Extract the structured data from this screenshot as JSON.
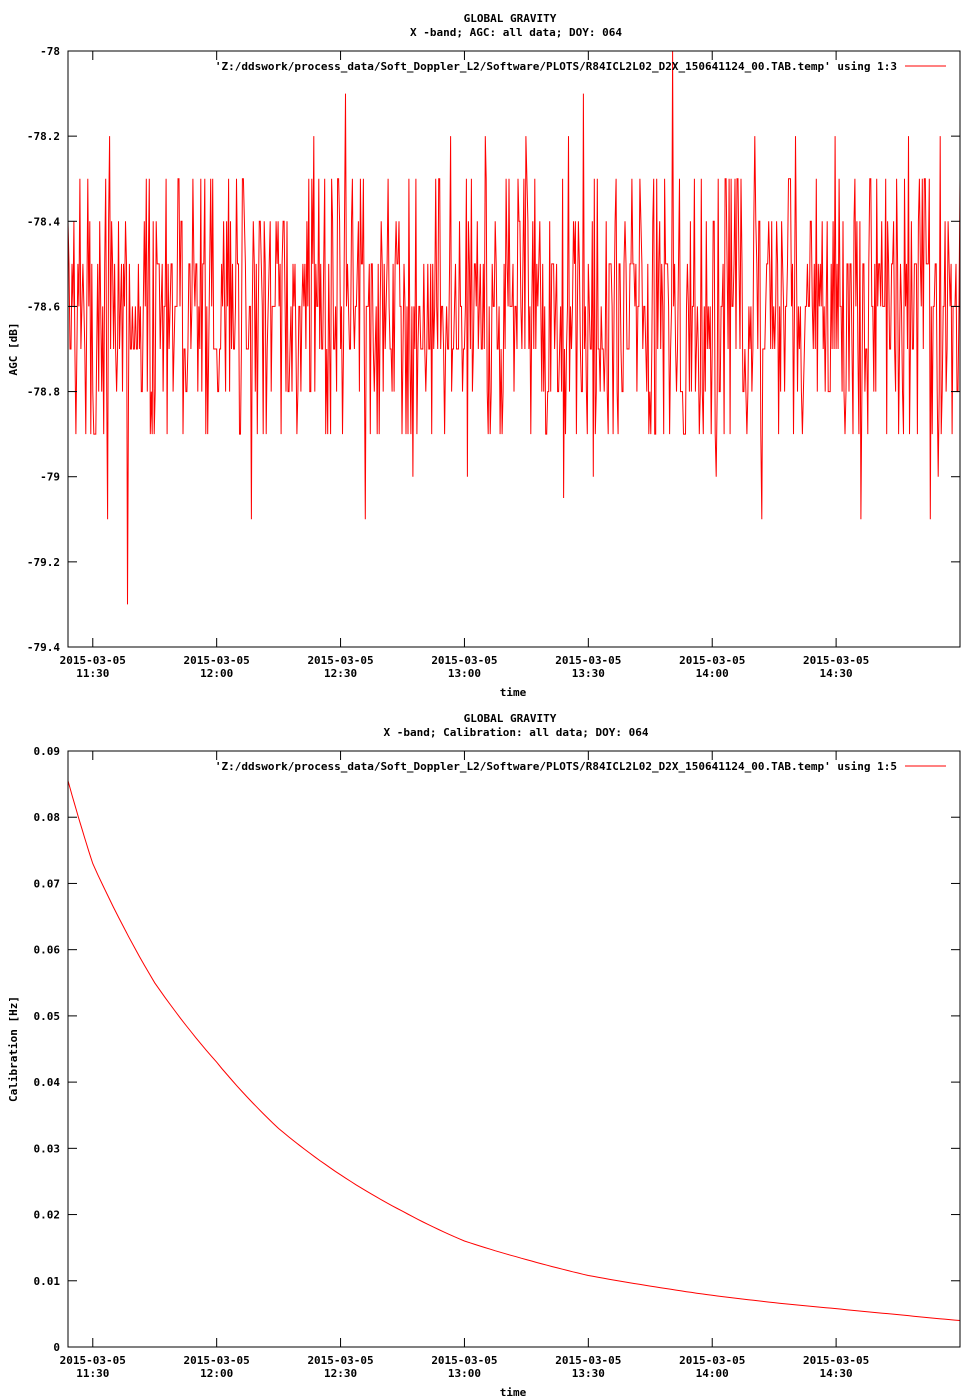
{
  "colors": {
    "series": "#ff0000",
    "frame": "#000000",
    "background": "#ffffff"
  },
  "chart_data": [
    {
      "type": "line",
      "title": "GLOBAL GRAVITY",
      "subtitle": "X -band; AGC: all data; DOY: 064",
      "xlabel": "time",
      "ylabel": "AGC [dB]",
      "ylim": [
        -79.4,
        -78
      ],
      "yticks": [
        -79.4,
        -79.2,
        -79,
        -78.8,
        -78.6,
        -78.4,
        -78.2,
        -78
      ],
      "ytick_labels": [
        "-79.4",
        "-79.2",
        "-79",
        "-78.8",
        "-78.6",
        "-78.4",
        "-78.2",
        "-78"
      ],
      "xlim": [
        "2015-03-05 11:24",
        "2015-03-05 15:00"
      ],
      "xticks": [
        "11:30",
        "12:00",
        "12:30",
        "13:00",
        "13:30",
        "14:00",
        "14:30"
      ],
      "xtick_date": "2015-03-05",
      "grid": false,
      "legend_position": "top-right",
      "series": [
        {
          "name": "'Z:/ddswork/process_data/Soft_Doppler_L2/Software/PLOTS/R84ICL2L02_D2X_150641124_00.TAB.temp' using 1:3",
          "sampling": "noisy AGC samples between -79.3 and -78.0 dB, mostly -78.9 to -78.3",
          "x_start": "11:24",
          "x_end": "15:00",
          "mean": -78.6,
          "min": -79.3,
          "max": -78.0
        }
      ]
    },
    {
      "type": "line",
      "title": "GLOBAL GRAVITY",
      "subtitle": "X -band; Calibration: all data; DOY: 064",
      "xlabel": "time",
      "ylabel": "Calibration [Hz]",
      "ylim": [
        0,
        0.09
      ],
      "yticks": [
        0,
        0.01,
        0.02,
        0.03,
        0.04,
        0.05,
        0.06,
        0.07,
        0.08,
        0.09
      ],
      "ytick_labels": [
        "0",
        "0.01",
        "0.02",
        "0.03",
        "0.04",
        "0.05",
        "0.06",
        "0.07",
        "0.08",
        "0.09"
      ],
      "xlim": [
        "2015-03-05 11:24",
        "2015-03-05 15:00"
      ],
      "xticks": [
        "11:30",
        "12:00",
        "12:30",
        "13:00",
        "13:30",
        "14:00",
        "14:30"
      ],
      "xtick_date": "2015-03-05",
      "grid": false,
      "legend_position": "top-right",
      "series": [
        {
          "name": "'Z:/ddswork/process_data/Soft_Doppler_L2/Software/PLOTS/R84ICL2L02_D2X_150641124_00.TAB.temp' using 1:5",
          "x": [
            "11:24",
            "11:30",
            "11:45",
            "12:00",
            "12:15",
            "12:30",
            "12:45",
            "13:00",
            "13:15",
            "13:30",
            "13:45",
            "14:00",
            "14:15",
            "14:30",
            "14:45",
            "15:00"
          ],
          "values": [
            0.0855,
            0.073,
            0.055,
            0.043,
            0.033,
            0.026,
            0.0205,
            0.016,
            0.0132,
            0.0108,
            0.0092,
            0.0078,
            0.0067,
            0.0058,
            0.0049,
            0.004
          ]
        }
      ]
    }
  ]
}
